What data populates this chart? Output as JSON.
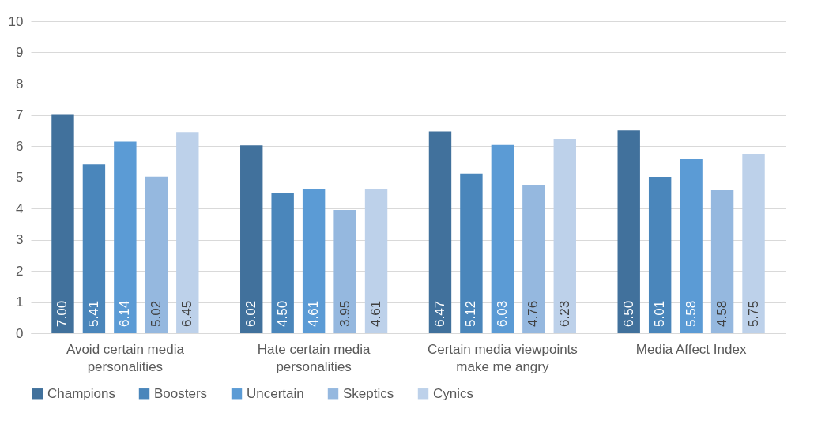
{
  "chart_data": {
    "type": "bar",
    "categories": [
      "Avoid certain media personalities",
      "Hate certain media personalities",
      "Certain media viewpoints make me angry",
      "Media Affect Index"
    ],
    "series": [
      {
        "name": "Champions",
        "color": "#41719c",
        "values": [
          7.0,
          6.02,
          6.47,
          6.5
        ],
        "value_labels": [
          "7.00",
          "6.02",
          "6.47",
          "6.50"
        ]
      },
      {
        "name": "Boosters",
        "color": "#4a86bb",
        "values": [
          5.41,
          4.5,
          5.12,
          5.01
        ],
        "value_labels": [
          "5.41",
          "4.50",
          "5.12",
          "5.01"
        ]
      },
      {
        "name": "Uncertain",
        "color": "#5b9bd5",
        "values": [
          6.14,
          4.61,
          6.03,
          5.58
        ],
        "value_labels": [
          "6.14",
          "4.61",
          "6.03",
          "5.58"
        ]
      },
      {
        "name": "Skeptics",
        "color": "#95b8df",
        "values": [
          5.02,
          3.95,
          4.76,
          4.58
        ],
        "value_labels": [
          "5.02",
          "3.95",
          "4.76",
          "4.58"
        ]
      },
      {
        "name": "Cynics",
        "color": "#bdd1ea",
        "values": [
          6.45,
          4.61,
          6.23,
          5.75
        ],
        "value_labels": [
          "6.45",
          "4.61",
          "6.23",
          "5.75"
        ]
      }
    ],
    "ylim": [
      0,
      10
    ],
    "yticks": [
      0,
      1,
      2,
      3,
      4,
      5,
      6,
      7,
      8,
      9,
      10
    ],
    "grid": "y",
    "legend": "bottom"
  }
}
